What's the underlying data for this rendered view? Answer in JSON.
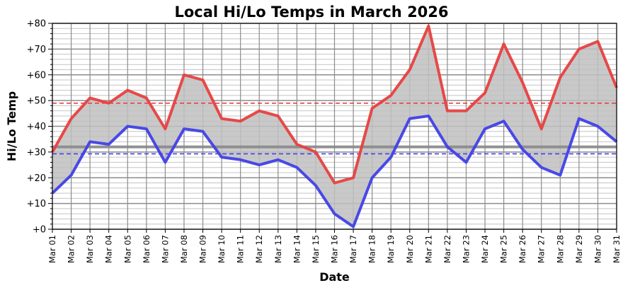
{
  "chart_data": {
    "type": "line",
    "title": "Local Hi/Lo Temps in March 2026",
    "xlabel": "Date",
    "ylabel": "Hi/Lo Temp",
    "ylim": [
      0,
      80
    ],
    "ytick_labels": [
      "+0",
      "+10",
      "+20",
      "+30",
      "+40",
      "+50",
      "+60",
      "+70",
      "+80"
    ],
    "categories": [
      "Mar 01",
      "Mar 02",
      "Mar 03",
      "Mar 04",
      "Mar 05",
      "Mar 06",
      "Mar 07",
      "Mar 08",
      "Mar 09",
      "Mar 10",
      "Mar 11",
      "Mar 12",
      "Mar 13",
      "Mar 14",
      "Mar 15",
      "Mar 16",
      "Mar 17",
      "Mar 18",
      "Mar 19",
      "Mar 20",
      "Mar 21",
      "Mar 22",
      "Mar 23",
      "Mar 24",
      "Mar 25",
      "Mar 26",
      "Mar 27",
      "Mar 28",
      "Mar 29",
      "Mar 30",
      "Mar 31"
    ],
    "series": [
      {
        "values": [
          30,
          43,
          51,
          49,
          54,
          51,
          39,
          60,
          58,
          43,
          42,
          46,
          44,
          33,
          30,
          18,
          20,
          47,
          52,
          62,
          79,
          46,
          46,
          53,
          72,
          57,
          39,
          59,
          70,
          73,
          55
        ],
        "color": "#e84040"
      },
      {
        "values": [
          14,
          21,
          34,
          33,
          40,
          39,
          26,
          39,
          38,
          28,
          27,
          25,
          27,
          24,
          17,
          6,
          1,
          20,
          28,
          43,
          44,
          32,
          26,
          39,
          42,
          31,
          24,
          21,
          43,
          40,
          34
        ],
        "color": "#4040e8"
      }
    ],
    "reference_lines": [
      {
        "value": 49,
        "color": "#e84040",
        "style": "dashed"
      },
      {
        "value": 29.3,
        "color": "#4040e8",
        "style": "dashed"
      },
      {
        "value": 32,
        "color": "#888888",
        "style": "solid"
      }
    ],
    "fill_between": {
      "color": "#c0c0c0"
    },
    "grid": true
  }
}
